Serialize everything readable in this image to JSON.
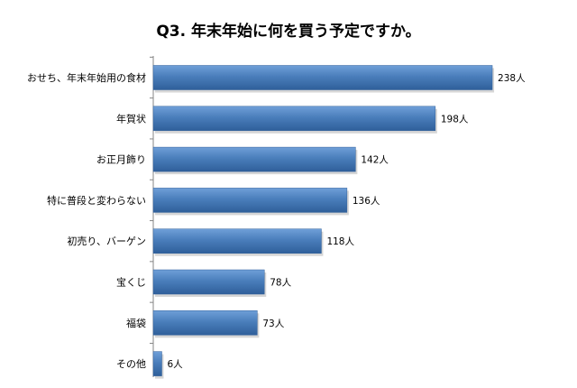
{
  "chart_data": {
    "type": "bar",
    "orientation": "horizontal",
    "title": "Q3. 年末年始に何を買う予定ですか。",
    "categories": [
      "おせち、年末年始用の食材",
      "年賀状",
      "お正月飾り",
      "特に普段と変わらない",
      "初売り、バーゲン",
      "宝くじ",
      "福袋",
      "その他"
    ],
    "values": [
      238,
      198,
      142,
      136,
      118,
      78,
      73,
      6
    ],
    "value_labels": [
      "238人",
      "198人",
      "142人",
      "136人",
      "118人",
      "78人",
      "73人",
      "6人"
    ],
    "unit": "人",
    "xlim": [
      0,
      250
    ],
    "grid": false,
    "legend": "none",
    "bar_color": "#4a7ebb",
    "bar_color_light": "#6f9fd8",
    "bar_color_dark": "#2f5f9a"
  }
}
